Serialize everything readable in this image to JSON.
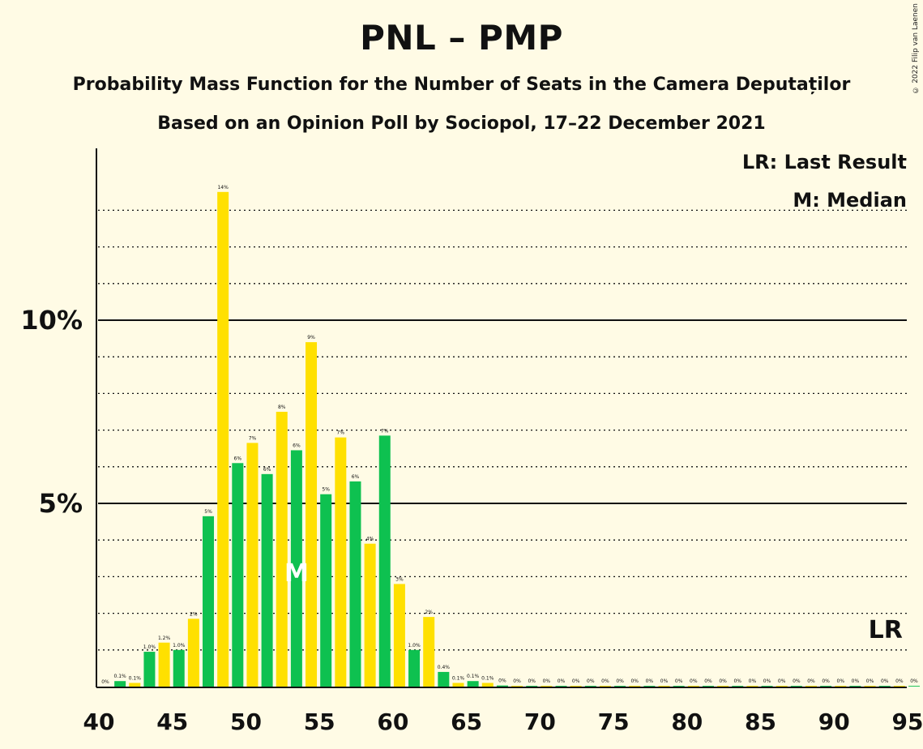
{
  "header": {
    "title": "PNL – PMP",
    "subtitle": "Probability Mass Function for the Number of Seats in the Camera Deputaților",
    "poll_line": "Based on an Opinion Poll by Sociopol, 17–22 December 2021",
    "copyright": "© 2022 Filip van Laenen"
  },
  "legend": {
    "last_result": "LR: Last Result",
    "median": "M: Median"
  },
  "colors": {
    "background": "#FFFBE5",
    "green": "#0EC150",
    "yellow": "#FFE000"
  },
  "chart_data": {
    "type": "bar",
    "title": "PNL – PMP",
    "xlabel": "",
    "ylabel": "",
    "xlim": [
      40,
      95
    ],
    "ylim": [
      0,
      14.5
    ],
    "x_ticks": [
      40,
      45,
      50,
      55,
      60,
      65,
      70,
      75,
      80,
      85,
      90,
      95
    ],
    "y_ticks": [
      {
        "value": 5,
        "label": "5%"
      },
      {
        "value": 10,
        "label": "10%"
      }
    ],
    "grid": {
      "major": [
        5,
        10
      ],
      "minor": [
        1,
        2,
        3,
        4,
        6,
        7,
        8,
        9,
        11,
        12,
        13
      ]
    },
    "median_seats": 53,
    "median_marker": "M",
    "last_result_seats": 93,
    "last_result_marker": "LR",
    "x": [
      40,
      41,
      42,
      43,
      44,
      45,
      46,
      47,
      48,
      49,
      50,
      51,
      52,
      53,
      54,
      55,
      56,
      57,
      58,
      59,
      60,
      61,
      62,
      63,
      64,
      65,
      66,
      67,
      68,
      69,
      70,
      71,
      72,
      73,
      74,
      75,
      76,
      77,
      78,
      79,
      80,
      81,
      82,
      83,
      84,
      85,
      86,
      87,
      88,
      89,
      90,
      91,
      92,
      93,
      94,
      95
    ],
    "values": [
      0.0,
      0.15,
      0.1,
      0.95,
      1.2,
      1.0,
      1.85,
      4.65,
      13.5,
      6.1,
      6.65,
      5.8,
      7.5,
      6.45,
      9.4,
      5.25,
      6.8,
      5.6,
      3.9,
      6.85,
      2.8,
      1.0,
      1.9,
      0.4,
      0.1,
      0.15,
      0.1,
      0.03,
      0.02,
      0.02,
      0.02,
      0.02,
      0.02,
      0.02,
      0.02,
      0.02,
      0.02,
      0.02,
      0.02,
      0.02,
      0.02,
      0.02,
      0.02,
      0.02,
      0.02,
      0.02,
      0.02,
      0.02,
      0.02,
      0.02,
      0.02,
      0.02,
      0.02,
      0.02,
      0.02,
      0.02
    ],
    "labels": [
      "0%",
      "0.1%",
      "0.1%",
      "1.0%",
      "1.2%",
      "1.0%",
      "2%",
      "5%",
      "14%",
      "6%",
      "7%",
      "6%",
      "8%",
      "6%",
      "9%",
      "5%",
      "7%",
      "6%",
      "4%",
      "7%",
      "3%",
      "1.0%",
      "2%",
      "0.4%",
      "0.1%",
      "0.1%",
      "0.1%",
      "0%",
      "0%",
      "0%",
      "0%",
      "0%",
      "0%",
      "0%",
      "0%",
      "0%",
      "0%",
      "0%",
      "0%",
      "0%",
      "0%",
      "0%",
      "0%",
      "0%",
      "0%",
      "0%",
      "0%",
      "0%",
      "0%",
      "0%",
      "0%",
      "0%",
      "0%",
      "0%",
      "0%",
      "0%"
    ]
  }
}
